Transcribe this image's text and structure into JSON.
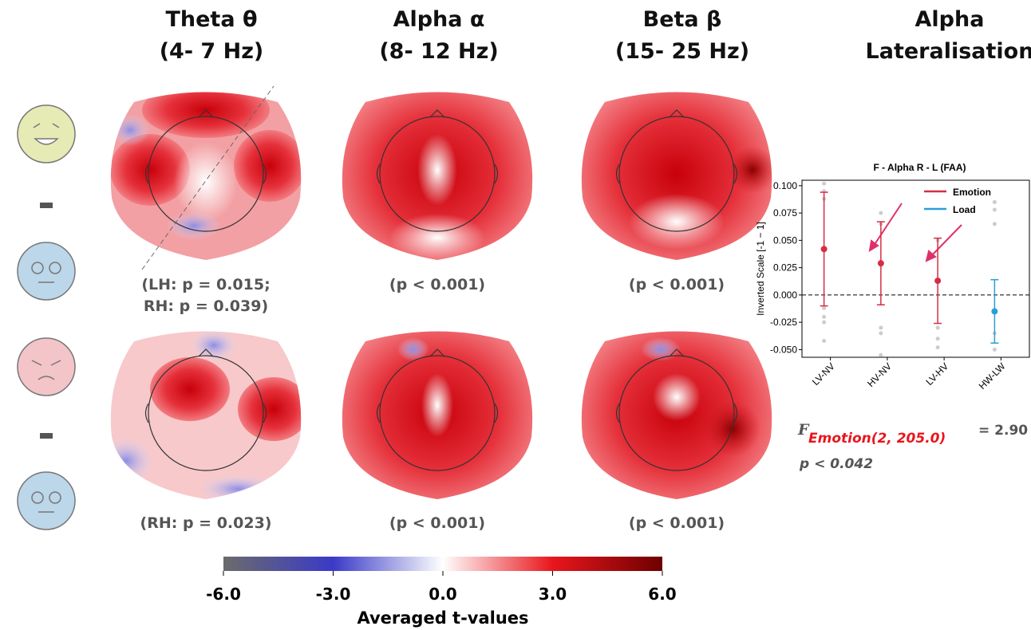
{
  "headers": [
    {
      "lines": [
        "Theta θ",
        "(4- 7 Hz)"
      ]
    },
    {
      "lines": [
        "Alpha α",
        "(8- 12 Hz)"
      ]
    },
    {
      "lines": [
        "Beta β",
        "(15- 25 Hz)"
      ]
    },
    {
      "lines": [
        "Alpha",
        "Lateralisation"
      ]
    }
  ],
  "row1_stats": [
    [
      "(LH: p = 0.015;",
      "RH: p = 0.039)"
    ],
    [
      "(p < 0.001)"
    ],
    [
      "(p < 0.001)"
    ]
  ],
  "row2_stats": [
    [
      "(RH: p = 0.023)"
    ],
    [
      "(p < 0.001)"
    ],
    [
      "(p < 0.001)"
    ]
  ],
  "stat": {
    "symbol": "F",
    "subscript": "Emotion(2, 205.0)",
    "value": "= 2.90",
    "p": "p < 0.042"
  },
  "chart_data": [
    {
      "type": "colorbar",
      "title": "Averaged t-values",
      "xlim": [
        -6,
        6
      ],
      "xticks": [
        {
          "value": -6,
          "label": "-6.0"
        },
        {
          "value": -3,
          "label": "-3.0"
        },
        {
          "value": 0,
          "label": "0.0"
        },
        {
          "value": 3,
          "label": "3.0"
        },
        {
          "value": 6,
          "label": "6.0"
        }
      ],
      "colors": [
        "#6b6b6b",
        "#3a3ac8",
        "#ffffff",
        "#e8161c",
        "#6e0000"
      ]
    },
    {
      "type": "errorbar",
      "title": "F - Alpha R - L (FAA)",
      "ylabel": "Inverted Scale [-1 − 1]",
      "categories": [
        "LV-NV",
        "HV-NV",
        "LV-HV",
        "HW-LW"
      ],
      "series": [
        {
          "name": "Emotion",
          "color": "#d62d45",
          "values": [
            0.042,
            0.029,
            0.013,
            null
          ],
          "errors": [
            0.052,
            0.038,
            0.039,
            null
          ]
        },
        {
          "name": "Load",
          "color": "#2a9fd6",
          "values": [
            null,
            null,
            null,
            -0.015
          ],
          "errors": [
            null,
            null,
            null,
            0.029
          ]
        }
      ],
      "points": [
        [
          0.102,
          0.095,
          0.088,
          -0.012,
          -0.02,
          -0.025,
          -0.042
        ],
        [
          0.075,
          0.065,
          -0.03,
          -0.035,
          -0.055
        ],
        [
          0.05,
          -0.03,
          -0.04,
          -0.048
        ],
        [
          0.085,
          0.078,
          0.065,
          -0.035,
          -0.05
        ]
      ],
      "points_color": "#cccccc",
      "ylim": [
        -0.057,
        0.105
      ],
      "yticks": [
        {
          "value": 0.1,
          "label": "0.100"
        },
        0.075,
        {
          "value": 0.05,
          "label": "0.050"
        },
        0.025,
        {
          "value": 0,
          "label": "0.000"
        },
        -0.025,
        {
          "value": -0.05,
          "label": "-0.050"
        }
      ],
      "reference_line": 0,
      "legend": "upper right"
    }
  ]
}
